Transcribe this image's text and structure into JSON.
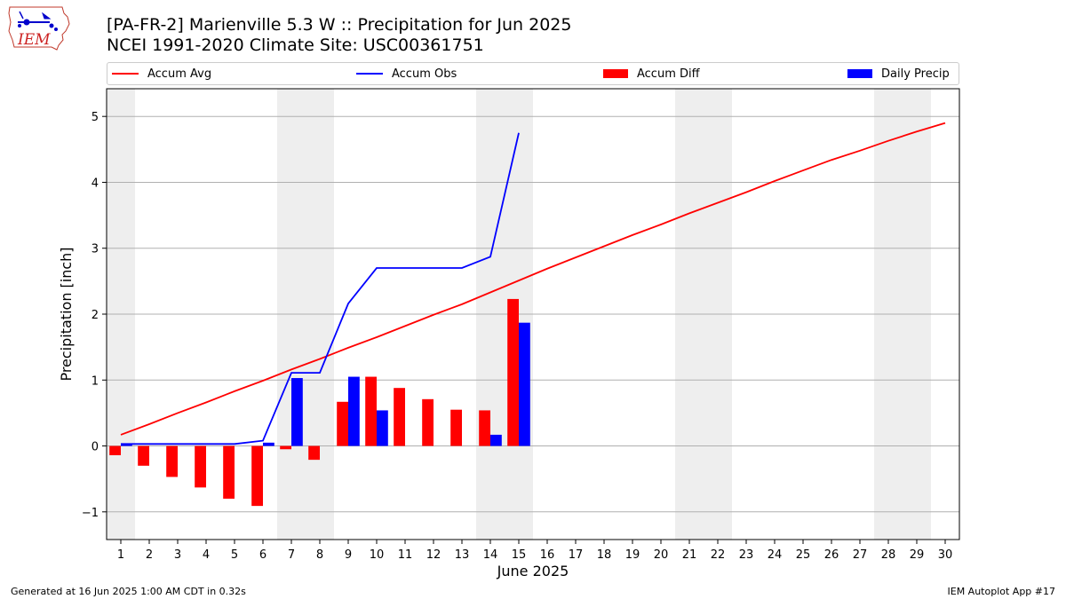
{
  "header": {
    "title_line1": "[PA-FR-2] Marienville 5.3 W :: Precipitation for Jun 2025",
    "title_line2": "NCEI 1991-2020 Climate Site: USC00361751"
  },
  "logo": {
    "text": "IEM",
    "icon": "iowa-state-outline-icon"
  },
  "legend": [
    {
      "label": "Accum Avg",
      "color": "#ff0000",
      "kind": "line"
    },
    {
      "label": "Accum Obs",
      "color": "#0000ff",
      "kind": "line"
    },
    {
      "label": "Accum Diff",
      "color": "#ff0000",
      "kind": "bar"
    },
    {
      "label": "Daily Precip",
      "color": "#0000ff",
      "kind": "bar"
    }
  ],
  "footer": {
    "left": "Generated at 16 Jun 2025 1:00 AM CDT in 0.32s",
    "right": "IEM Autoplot App #17"
  },
  "chart_data": {
    "type": "bar",
    "xlabel": "June 2025",
    "ylabel": "Precipitation [inch]",
    "xlim": [
      0.5,
      30.5
    ],
    "ylim": [
      -1.42,
      5.42
    ],
    "x_ticks": [
      1,
      2,
      3,
      4,
      5,
      6,
      7,
      8,
      9,
      10,
      11,
      12,
      13,
      14,
      15,
      16,
      17,
      18,
      19,
      20,
      21,
      22,
      23,
      24,
      25,
      26,
      27,
      28,
      29,
      30
    ],
    "y_ticks": [
      -1,
      0,
      1,
      2,
      3,
      4,
      5
    ],
    "y_tick_labels": [
      "−1",
      "0",
      "1",
      "2",
      "3",
      "4",
      "5"
    ],
    "grid": "horizontal",
    "weekend_shading": [
      [
        0.5,
        1.5
      ],
      [
        6.5,
        8.5
      ],
      [
        13.5,
        15.5
      ],
      [
        20.5,
        22.5
      ],
      [
        27.5,
        29.5
      ]
    ],
    "weekend_color": "#eeeeee",
    "days": [
      1,
      2,
      3,
      4,
      5,
      6,
      7,
      8,
      9,
      10,
      11,
      12,
      13,
      14,
      15,
      16,
      17,
      18,
      19,
      20,
      21,
      22,
      23,
      24,
      25,
      26,
      27,
      28,
      29,
      30
    ],
    "series": [
      {
        "name": "Accum Avg",
        "kind": "line",
        "color": "#ff0000",
        "x": [
          1,
          2,
          3,
          4,
          5,
          6,
          7,
          8,
          9,
          10,
          11,
          12,
          13,
          14,
          15,
          16,
          17,
          18,
          19,
          20,
          21,
          22,
          23,
          24,
          25,
          26,
          27,
          28,
          29,
          30
        ],
        "values": [
          0.17,
          0.33,
          0.5,
          0.66,
          0.83,
          0.99,
          1.16,
          1.32,
          1.49,
          1.65,
          1.82,
          1.99,
          2.15,
          2.33,
          2.51,
          2.69,
          2.86,
          3.03,
          3.2,
          3.36,
          3.53,
          3.69,
          3.85,
          4.02,
          4.18,
          4.34,
          4.48,
          4.63,
          4.77,
          4.9
        ]
      },
      {
        "name": "Accum Obs",
        "kind": "line",
        "color": "#0000ff",
        "x": [
          1,
          2,
          3,
          4,
          5,
          6,
          7,
          8,
          9,
          10,
          11,
          12,
          13,
          14,
          15
        ],
        "values": [
          0.03,
          0.03,
          0.03,
          0.03,
          0.03,
          0.08,
          1.11,
          1.11,
          2.16,
          2.7,
          2.7,
          2.7,
          2.7,
          2.87,
          4.75
        ]
      },
      {
        "name": "Accum Diff",
        "kind": "bar",
        "color": "#ff0000",
        "x": [
          1,
          2,
          3,
          4,
          5,
          6,
          7,
          8,
          9,
          10,
          11,
          12,
          13,
          14,
          15
        ],
        "values": [
          -0.14,
          -0.3,
          -0.47,
          -0.63,
          -0.8,
          -0.91,
          -0.05,
          -0.21,
          0.67,
          1.05,
          0.88,
          0.71,
          0.55,
          0.54,
          2.23
        ]
      },
      {
        "name": "Daily Precip",
        "kind": "bar",
        "color": "#0000ff",
        "x": [
          1,
          2,
          3,
          4,
          5,
          6,
          7,
          8,
          9,
          10,
          11,
          12,
          13,
          14,
          15
        ],
        "values": [
          0.03,
          0.0,
          0.0,
          0.0,
          0.0,
          0.05,
          1.03,
          0.0,
          1.05,
          0.54,
          0.0,
          0.0,
          0.0,
          0.17,
          1.87
        ]
      }
    ]
  }
}
